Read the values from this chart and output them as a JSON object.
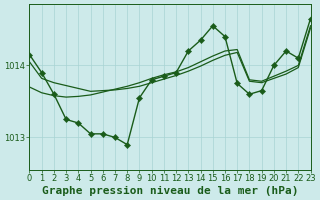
{
  "title": "Graphe pression niveau de la mer (hPa)",
  "background_color": "#cdeaea",
  "grid_color": "#a8d4d4",
  "line_color": "#1a5c1a",
  "marker_color": "#1a5c1a",
  "xlim": [
    0,
    23
  ],
  "ylim": [
    1012.55,
    1014.85
  ],
  "yticks": [
    1013,
    1014
  ],
  "xticks": [
    0,
    1,
    2,
    3,
    4,
    5,
    6,
    7,
    8,
    9,
    10,
    11,
    12,
    13,
    14,
    15,
    16,
    17,
    18,
    19,
    20,
    21,
    22,
    23
  ],
  "series": [
    [
      1014.15,
      1013.9,
      1013.6,
      1013.25,
      1013.2,
      1013.05,
      1013.05,
      1013.0,
      1012.9,
      1013.55,
      1013.8,
      1013.85,
      1013.9,
      1014.2,
      1014.35,
      1014.55,
      1014.4,
      1013.75,
      1013.6,
      1013.65,
      1014.0,
      1014.2,
      1014.1,
      1014.65
    ],
    [
      1013.7,
      1013.62,
      1013.58,
      1013.56,
      1013.57,
      1013.59,
      1013.63,
      1013.67,
      1013.71,
      1013.76,
      1013.82,
      1013.87,
      1013.91,
      1013.97,
      1014.05,
      1014.13,
      1014.2,
      1014.22,
      1013.8,
      1013.78,
      1013.85,
      1013.92,
      1014.0,
      1014.55
    ],
    [
      1014.05,
      1013.82,
      1013.76,
      1013.72,
      1013.68,
      1013.64,
      1013.65,
      1013.66,
      1013.68,
      1013.71,
      1013.76,
      1013.81,
      1013.86,
      1013.92,
      1013.99,
      1014.07,
      1014.14,
      1014.18,
      1013.78,
      1013.76,
      1013.82,
      1013.88,
      1013.97,
      1014.52
    ]
  ],
  "has_markers": [
    true,
    false,
    false
  ],
  "marker_size": 3.2,
  "linewidths": [
    1.0,
    0.9,
    0.9
  ],
  "title_fontsize": 8,
  "tick_fontsize": 6,
  "tick_color": "#1a5c1a",
  "axis_color": "#1a5c1a",
  "ylabel_fontsize": 7
}
